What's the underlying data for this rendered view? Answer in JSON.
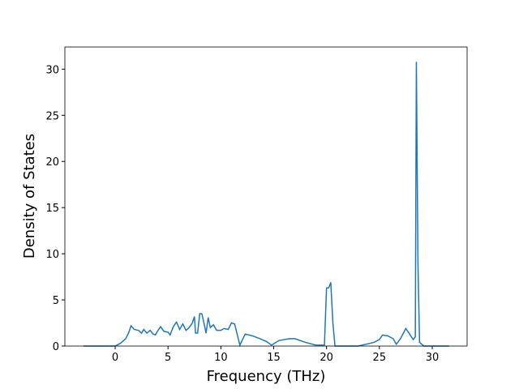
{
  "chart_data": {
    "type": "line",
    "x_label": "Frequency (THz)",
    "y_label": "Density of States",
    "xlim": [
      -4.76,
      33.3
    ],
    "ylim": [
      0,
      32.4
    ],
    "xticks": [
      0,
      5,
      10,
      15,
      20,
      25,
      30
    ],
    "yticks": [
      0,
      5,
      10,
      15,
      20,
      25,
      30
    ],
    "x": [
      -3,
      0,
      0.5,
      1,
      1.3,
      1.5,
      1.8,
      2.2,
      2.5,
      2.7,
      3,
      3.3,
      3.6,
      3.8,
      4,
      4.3,
      4.6,
      5,
      5.2,
      5.5,
      5.8,
      6.1,
      6.4,
      6.7,
      7,
      7.3,
      7.5,
      7.6,
      7.8,
      8,
      8.2,
      8.4,
      8.6,
      8.8,
      9,
      9.3,
      9.6,
      10,
      10.3,
      10.7,
      11,
      11.3,
      11.8,
      12.3,
      13,
      13.7,
      14.3,
      14.8,
      15.5,
      16.5,
      17,
      18,
      19,
      19.8,
      20,
      20.2,
      20.4,
      20.6,
      20.8,
      21.5,
      23,
      24.5,
      25,
      25.3,
      25.8,
      26.3,
      26.6,
      27,
      27.5,
      27.8,
      28.2,
      28.4,
      28.5,
      28.65,
      28.8,
      29.2,
      30,
      31.6
    ],
    "series": [
      {
        "color": "#1f77b4",
        "values": [
          0,
          0,
          0.3,
          0.8,
          1.5,
          2.2,
          1.8,
          1.7,
          1.4,
          1.8,
          1.4,
          1.7,
          1.3,
          1.2,
          1.6,
          2.1,
          1.6,
          1.5,
          1.2,
          2.1,
          2.6,
          1.8,
          2.4,
          1.7,
          2.0,
          2.5,
          3.2,
          1.4,
          1.4,
          3.5,
          3.5,
          2.5,
          1.4,
          3.1,
          2.0,
          2.3,
          1.7,
          1.7,
          1.9,
          1.8,
          2.5,
          2.4,
          0.1,
          1.3,
          1.1,
          0.8,
          0.5,
          0.1,
          0.6,
          0.8,
          0.8,
          0.4,
          0.1,
          0.1,
          6.3,
          6.3,
          6.9,
          2.5,
          0,
          0,
          0,
          0.4,
          0.7,
          1.2,
          1.1,
          0.8,
          0.2,
          0.8,
          1.9,
          1.4,
          0.7,
          1.0,
          30.8,
          9,
          0.4,
          0,
          0,
          0
        ]
      }
    ]
  }
}
